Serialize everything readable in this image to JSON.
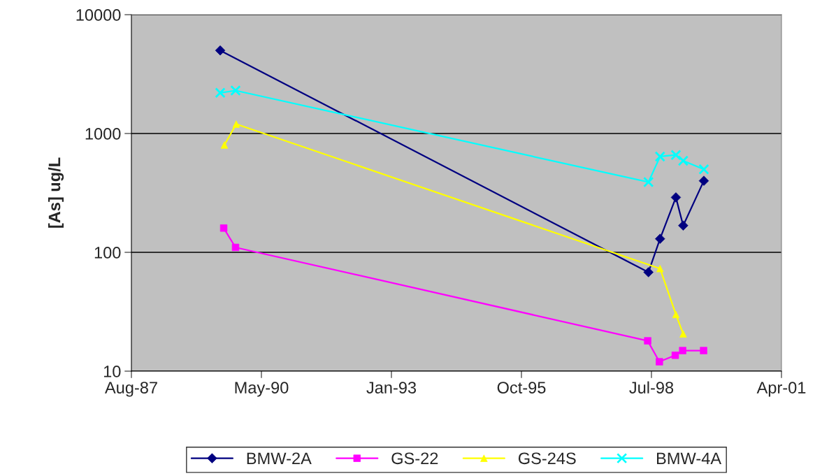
{
  "chart_data": {
    "type": "line",
    "ylabel": "[As] ug/L",
    "log": "y",
    "xlim": [
      "1987-08-11",
      "2001-04-19"
    ],
    "xticks": [
      {
        "value": "1987-08-11",
        "label": "Aug-87"
      },
      {
        "value": "1990-05-07",
        "label": "May-90"
      },
      {
        "value": "1993-01-31",
        "label": "Jan-93"
      },
      {
        "value": "1995-10-28",
        "label": "Oct-95"
      },
      {
        "value": "1998-07-24",
        "label": "Jul-98"
      },
      {
        "value": "2001-04-19",
        "label": "Apr-01"
      }
    ],
    "ylim": [
      10,
      10000
    ],
    "yticks": [
      10,
      100,
      1000,
      10000
    ],
    "grid": "y",
    "legend": "bottom",
    "line_style": "solid",
    "series": [
      {
        "name": "BMW-2A",
        "color": "#000080",
        "marker": "diamond",
        "x": [
          "1989-06-24",
          "1998-07-01",
          "1998-09-28",
          "1999-01-28",
          "1999-03-25",
          "1999-08-31"
        ],
        "values": [
          5000,
          68,
          130,
          290,
          168,
          400
        ]
      },
      {
        "name": "GS-22",
        "color": "#ff00ff",
        "marker": "square",
        "x": [
          "1989-07-21",
          "1989-10-20",
          "1998-06-25",
          "1998-09-23",
          "1999-01-23",
          "1999-03-21",
          "1999-08-29"
        ],
        "values": [
          160,
          110,
          18,
          12,
          13.6,
          14.9,
          14.9
        ]
      },
      {
        "name": "GS-24S",
        "color": "#ffff00",
        "marker": "triangle",
        "x": [
          "1989-07-26",
          "1989-10-25",
          "1998-09-28",
          "1999-01-28",
          "1999-03-25"
        ],
        "values": [
          800,
          1200,
          73,
          30,
          20.6
        ]
      },
      {
        "name": "BMW-4A",
        "color": "#00ffff",
        "marker": "cross",
        "x": [
          "1989-06-24",
          "1989-10-20",
          "1998-07-01",
          "1998-09-28",
          "1999-01-28",
          "1999-03-25",
          "1999-08-31"
        ],
        "values": [
          2200,
          2300,
          390,
          640,
          660,
          590,
          500
        ]
      }
    ]
  }
}
